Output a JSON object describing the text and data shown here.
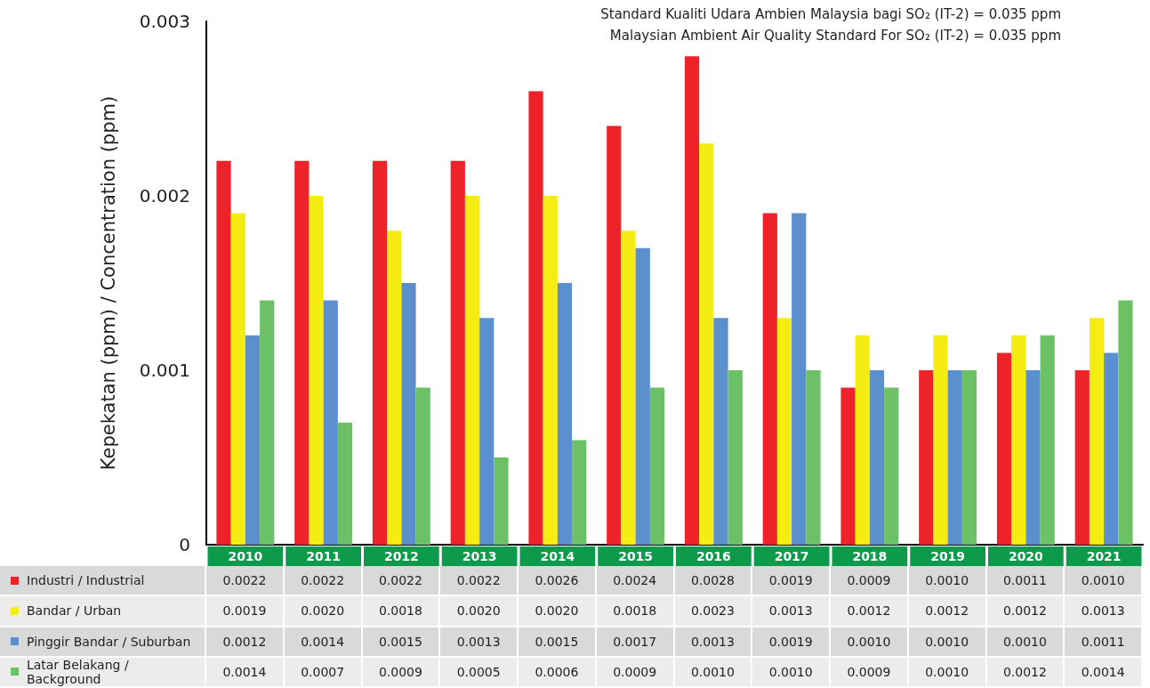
{
  "chart_data": {
    "type": "bar",
    "ylabel": "Kepekatan (ppm) / Concentration (ppm)",
    "annotations": [
      "Standard Kualiti Udara Ambien Malaysia bagi SO₂ (IT-2) = 0.035 ppm",
      "Malaysian Ambient Air Quality Standard For SO₂ (IT-2) = 0.035 ppm"
    ],
    "categories": [
      "2010",
      "2011",
      "2012",
      "2013",
      "2014",
      "2015",
      "2016",
      "2017",
      "2018",
      "2019",
      "2020",
      "2021"
    ],
    "series": [
      {
        "name": "Industri / Industrial",
        "color": "#ee2229",
        "values": [
          0.0022,
          0.0022,
          0.0022,
          0.0022,
          0.0026,
          0.0024,
          0.0028,
          0.0019,
          0.0009,
          0.001,
          0.0011,
          0.001
        ],
        "value_labels": [
          "0.0022",
          "0.0022",
          "0.0022",
          "0.0022",
          "0.0026",
          "0.0024",
          "0.0028",
          "0.0019",
          "0.0009",
          "0.0010",
          "0.0011",
          "0.0010"
        ]
      },
      {
        "name": "Bandar / Urban",
        "color": "#f5ec14",
        "values": [
          0.0019,
          0.002,
          0.0018,
          0.002,
          0.002,
          0.0018,
          0.0023,
          0.0013,
          0.0012,
          0.0012,
          0.0012,
          0.0013
        ],
        "value_labels": [
          "0.0019",
          "0.0020",
          "0.0018",
          "0.0020",
          "0.0020",
          "0.0018",
          "0.0023",
          "0.0013",
          "0.0012",
          "0.0012",
          "0.0012",
          "0.0013"
        ]
      },
      {
        "name": "Pinggir Bandar / Suburban",
        "color": "#5b8fce",
        "values": [
          0.0012,
          0.0014,
          0.0015,
          0.0013,
          0.0015,
          0.0017,
          0.0013,
          0.0019,
          0.001,
          0.001,
          0.001,
          0.0011
        ],
        "value_labels": [
          "0.0012",
          "0.0014",
          "0.0015",
          "0.0013",
          "0.0015",
          "0.0017",
          "0.0013",
          "0.0019",
          "0.0010",
          "0.0010",
          "0.0010",
          "0.0011"
        ]
      },
      {
        "name": "Latar Belakang / Background",
        "color": "#6cc167",
        "values": [
          0.0014,
          0.0007,
          0.0009,
          0.0005,
          0.0006,
          0.0009,
          0.001,
          0.001,
          0.0009,
          0.001,
          0.0012,
          0.0014
        ],
        "value_labels": [
          "0.0014",
          "0.0007",
          "0.0009",
          "0.0005",
          "0.0006",
          "0.0009",
          "0.0010",
          "0.0010",
          "0.0009",
          "0.0010",
          "0.0012",
          "0.0014"
        ]
      }
    ],
    "ylim": [
      0,
      0.003
    ],
    "yticks": [
      0,
      0.001,
      0.002,
      0.003
    ],
    "grid": false,
    "legend": "bottom left"
  }
}
